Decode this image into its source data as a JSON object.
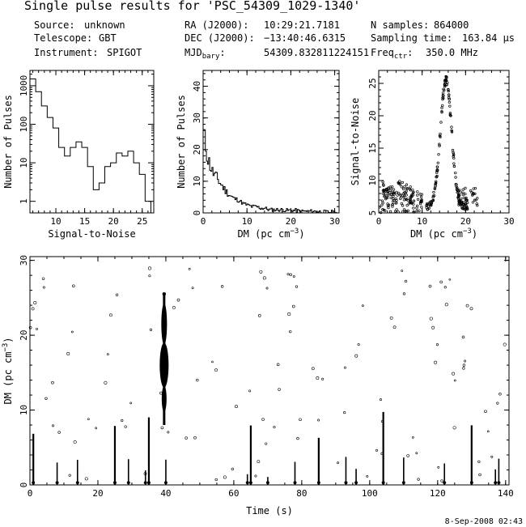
{
  "header": {
    "title": "Single pulse results for 'PSC_54309_1029-1340'",
    "info": [
      {
        "label": "Source:",
        "value": "unknown"
      },
      {
        "label": "Telescope:",
        "value": "GBT"
      },
      {
        "label": "Instrument:",
        "value": "SPIGOT"
      },
      {
        "label": "RA (J2000):",
        "value": "10:29:21.7181"
      },
      {
        "label": "DEC (J2000):",
        "value": "−13:40:46.6315"
      },
      {
        "label": "MJD_bary:",
        "value": "54309.832811224151"
      },
      {
        "label": "N samples:",
        "value": "864000"
      },
      {
        "label": "Sampling time:",
        "value": "163.84 μs"
      },
      {
        "label": "Freq_ctr:",
        "value": "350.0 MHz"
      }
    ]
  },
  "footer": {
    "timestamp": "8-Sep-2008 02:43"
  },
  "chart_data": [
    {
      "type": "bar",
      "subtype": "histogram-step",
      "xlabel": "Signal-to-Noise",
      "ylabel": "Number of Pulses",
      "yscale": "log",
      "xlim": [
        5.5,
        27
      ],
      "ylim": [
        0.5,
        2500
      ],
      "xticks": [
        10,
        15,
        20,
        25
      ],
      "yticks": [
        1,
        10,
        100,
        1000
      ],
      "x": [
        6,
        7,
        8,
        9,
        10,
        11,
        12,
        13,
        14,
        15,
        16,
        17,
        18,
        19,
        20,
        21,
        22,
        23,
        24,
        25,
        26
      ],
      "values": [
        1500,
        700,
        300,
        150,
        80,
        25,
        15,
        25,
        35,
        25,
        8,
        2,
        3,
        8,
        10,
        18,
        15,
        20,
        10,
        5,
        1
      ]
    },
    {
      "type": "bar",
      "subtype": "histogram-step",
      "xlabel": "DM (pc cm⁻³)",
      "ylabel": "Number of Pulses",
      "xlim": [
        0,
        31
      ],
      "ylim": [
        0,
        45
      ],
      "xticks": [
        0,
        10,
        20,
        30
      ],
      "yticks": [
        0,
        10,
        20,
        30,
        40
      ],
      "x": [
        0,
        1,
        2,
        3,
        4,
        5,
        6,
        7,
        8,
        9,
        10,
        11,
        12,
        13,
        14,
        15,
        16,
        17,
        18,
        19,
        20,
        21,
        22,
        23,
        24,
        25,
        26,
        27,
        28,
        29,
        30
      ],
      "values": [
        25,
        17,
        13,
        11,
        9,
        7,
        5.5,
        4.5,
        4,
        3,
        2.5,
        2,
        2,
        1.5,
        1.5,
        1,
        1,
        1,
        1,
        0.8,
        0.8,
        0.8,
        0.5,
        0.5,
        0.5,
        0.5,
        0.5,
        0.3,
        0.3,
        0.3,
        0.3
      ]
    },
    {
      "type": "scatter",
      "xlabel": "DM (pc cm⁻³)",
      "ylabel": "Signal-to-Noise",
      "xlim": [
        0,
        30
      ],
      "ylim": [
        5,
        27
      ],
      "xticks": [
        0,
        10,
        20,
        30
      ],
      "yticks": [
        5,
        10,
        15,
        20,
        25
      ],
      "peak": {
        "dm": 15.5,
        "snr": 25.5
      }
    },
    {
      "type": "scatter",
      "xlabel": "Time (s)",
      "ylabel": "DM (pc cm⁻³)",
      "xlim": [
        0,
        141
      ],
      "ylim": [
        0,
        30.5
      ],
      "xticks": [
        0,
        20,
        40,
        60,
        80,
        100,
        120,
        140
      ],
      "yticks": [
        0,
        10,
        20,
        30
      ],
      "pulse": {
        "time_s": 39.5,
        "dm_center": 16,
        "dm_range": [
          8,
          25.5
        ],
        "snr_max": 25.5
      },
      "rfi_times_s": [
        1,
        8,
        14,
        25,
        29,
        34,
        35,
        40,
        64,
        65,
        70,
        78,
        85,
        93,
        96,
        104,
        110,
        122,
        130,
        137,
        138
      ]
    }
  ]
}
